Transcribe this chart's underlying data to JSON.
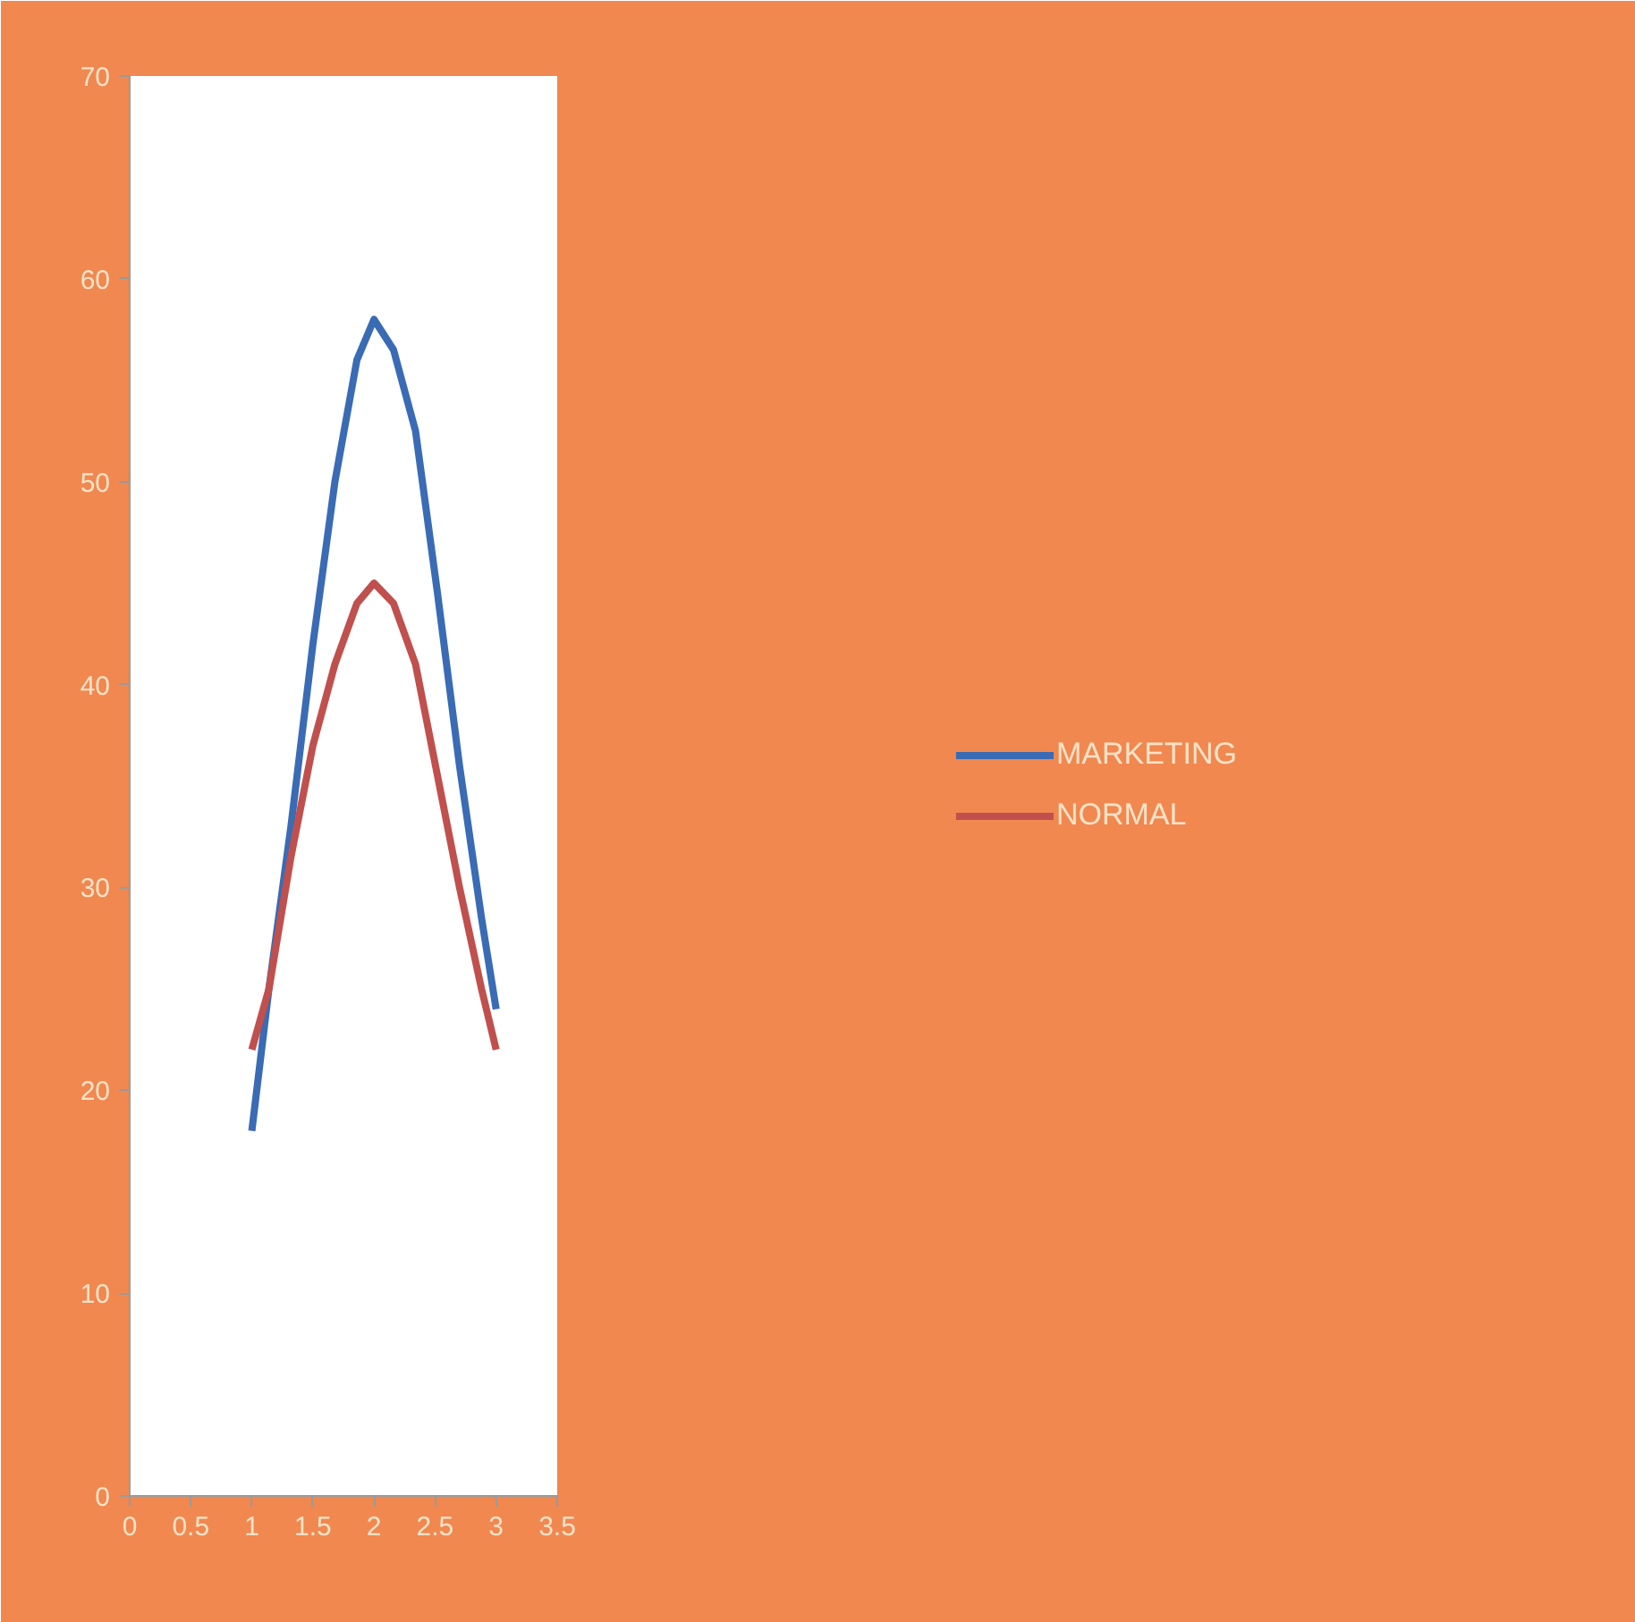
{
  "chart_data": {
    "type": "line",
    "x": [
      1,
      1.14,
      1.32,
      1.5,
      1.68,
      1.86,
      2,
      2.16,
      2.34,
      2.52,
      2.7,
      2.88,
      3
    ],
    "series": [
      {
        "name": "MARKETING",
        "color": "#3a6bb5",
        "values": [
          18,
          25,
          33,
          42,
          50,
          56,
          58,
          56.5,
          52.5,
          44.5,
          36,
          28.5,
          24
        ]
      },
      {
        "name": "NORMAL",
        "color": "#c0504d",
        "values": [
          22,
          25,
          31.5,
          37,
          41,
          44,
          45,
          44,
          41,
          35.5,
          30,
          25,
          22
        ]
      }
    ],
    "xlim": [
      0,
      3.5
    ],
    "xticks": [
      0,
      0.5,
      1,
      1.5,
      2,
      2.5,
      3,
      3.5
    ],
    "ylim": [
      0,
      70
    ],
    "yticks": [
      0,
      10,
      20,
      30,
      40,
      50,
      60,
      70
    ],
    "grid": false,
    "legend": "right",
    "marker": "none",
    "line_style": "solid"
  }
}
